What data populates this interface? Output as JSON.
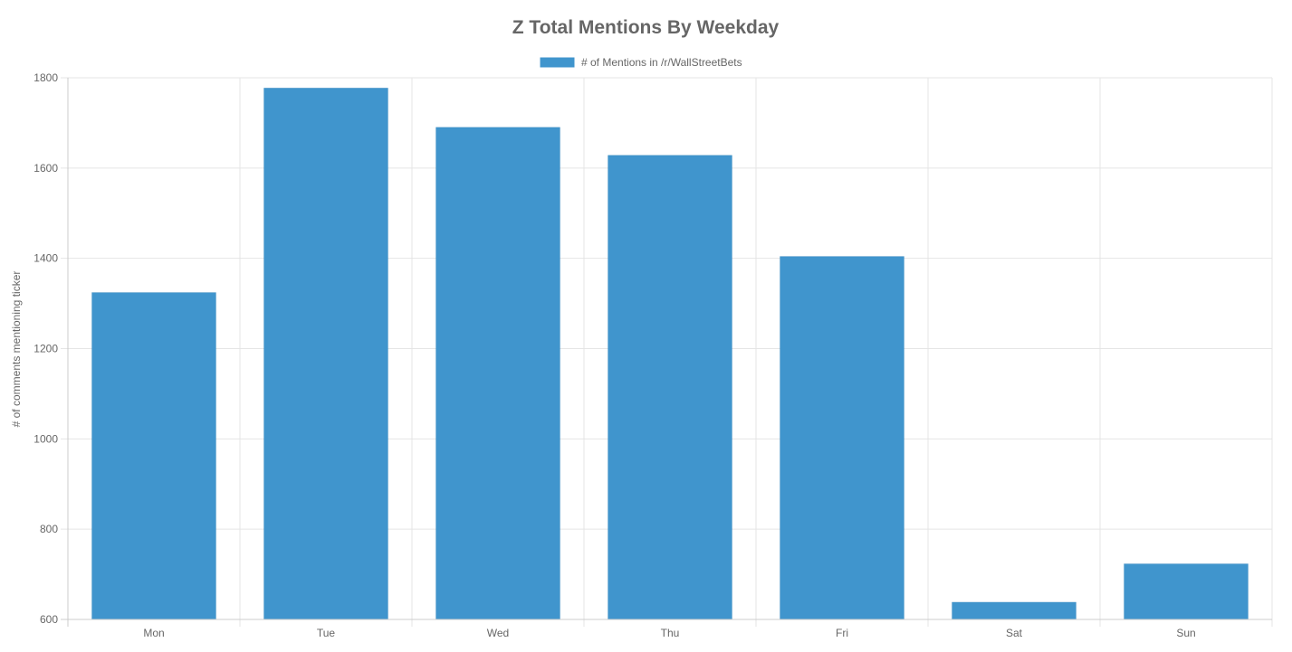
{
  "chart_data": {
    "type": "bar",
    "title": "Z Total Mentions By Weekday",
    "categories": [
      "Mon",
      "Tue",
      "Wed",
      "Thu",
      "Fri",
      "Sat",
      "Sun"
    ],
    "series": [
      {
        "name": "# of Mentions in /r/WallStreetBets",
        "values": [
          1324,
          1777,
          1690,
          1628,
          1404,
          638,
          723
        ],
        "color": "#4095cd"
      }
    ],
    "xlabel": "",
    "ylabel": "# of comments mentioning ticker",
    "ylim": [
      600,
      1800
    ],
    "yticks": [
      "1800",
      "1600",
      "1400",
      "1200",
      "1000",
      "800",
      "600"
    ],
    "grid": true,
    "legend": "top-center"
  }
}
